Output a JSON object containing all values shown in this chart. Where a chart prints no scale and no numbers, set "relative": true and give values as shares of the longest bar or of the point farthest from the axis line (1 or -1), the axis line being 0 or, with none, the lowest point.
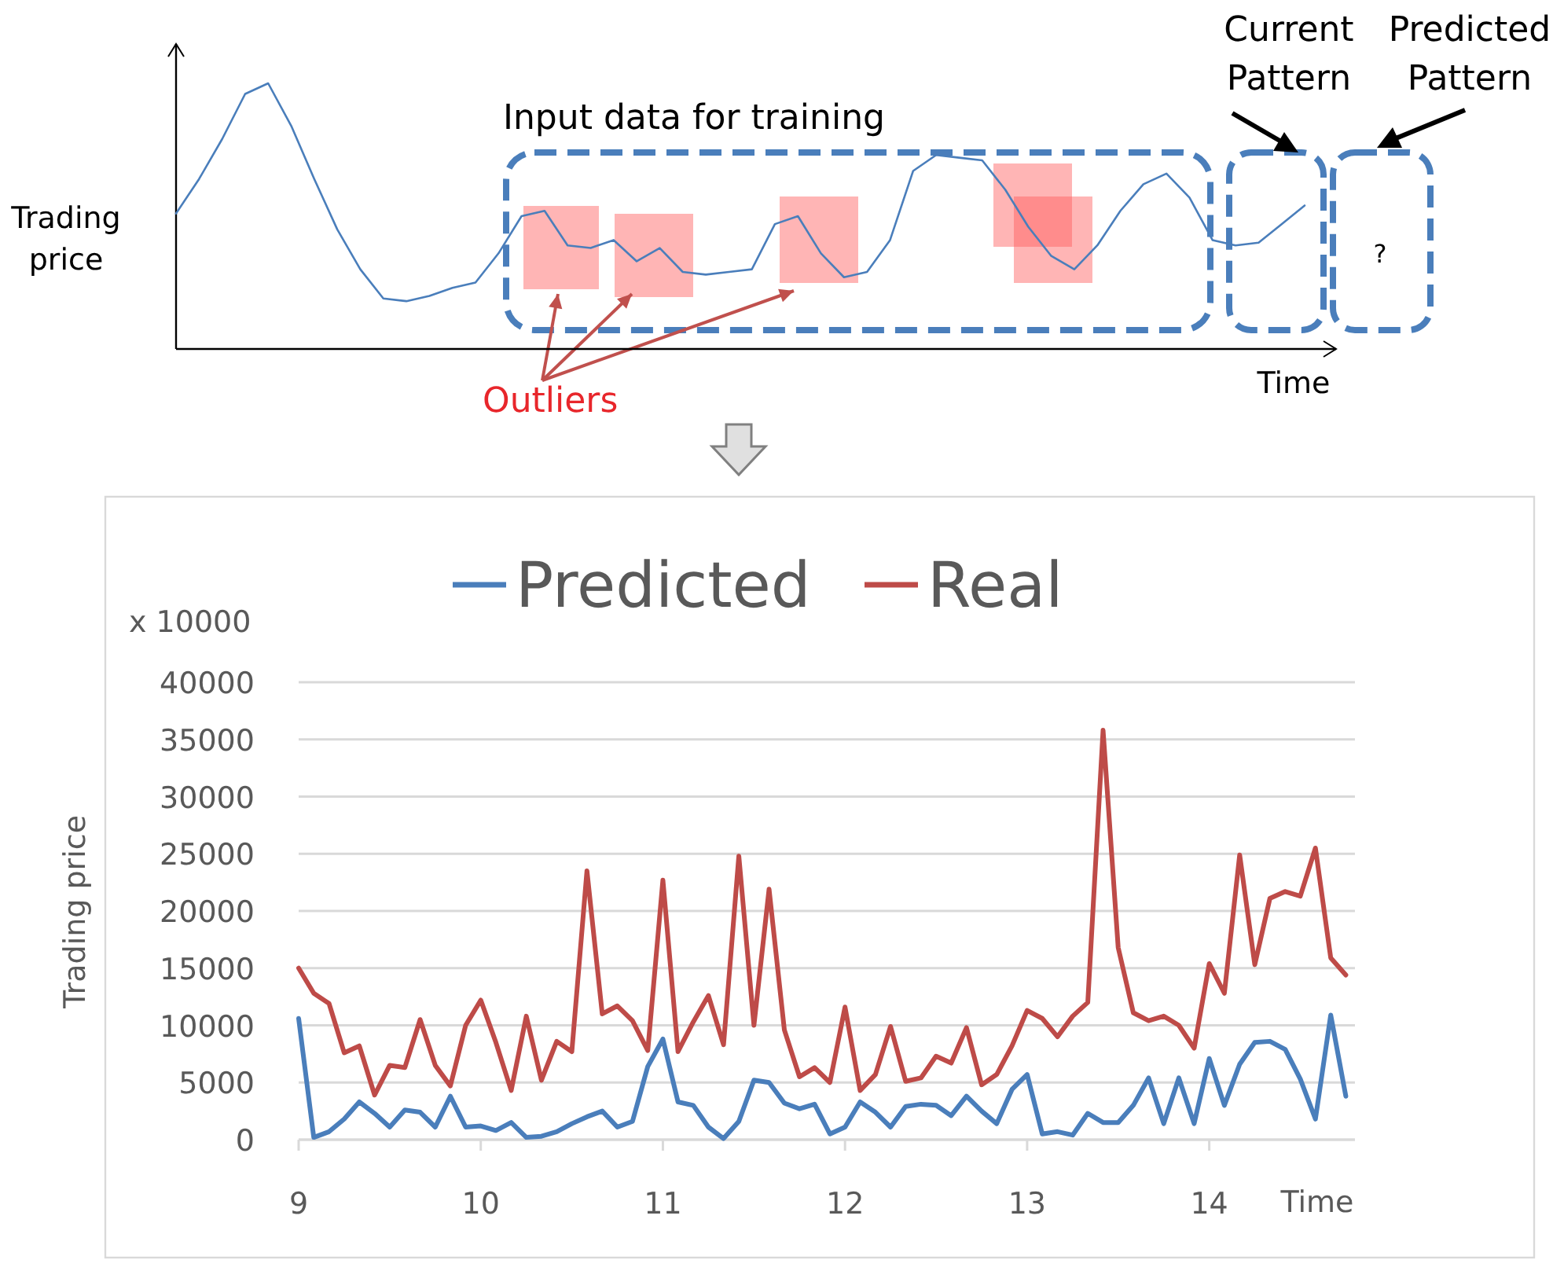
{
  "chart_data": [
    {
      "type": "line",
      "relative": true,
      "xlabel": "Time",
      "ylabel": "Trading price",
      "color": "#4a7ebb",
      "annotations": [
        "Input data for training",
        "Current Pattern",
        "Predicted Pattern",
        "Outliers",
        "?"
      ],
      "categories": [
        null,
        null,
        null,
        null,
        null,
        null,
        null,
        null,
        null,
        null,
        null,
        null,
        null,
        null,
        null,
        null,
        null,
        null,
        null,
        null,
        null,
        null,
        null,
        null,
        null,
        null,
        null,
        null,
        null,
        null,
        null,
        null,
        null,
        null,
        null,
        null,
        null,
        null,
        null,
        null,
        null,
        null,
        null,
        null,
        null,
        null,
        null,
        null,
        null,
        null
      ],
      "values": [
        0.51,
        0.64,
        0.79,
        0.96,
        1,
        0.84,
        0.64,
        0.45,
        0.3,
        0.19,
        0.18,
        0.2,
        0.23,
        0.25,
        0.36,
        0.5,
        0.52,
        0.39,
        0.38,
        0.41,
        0.33,
        0.38,
        0.29,
        0.28,
        0.29,
        0.3,
        0.47,
        0.5,
        0.36,
        0.27,
        0.29,
        0.41,
        0.67,
        0.73,
        0.72,
        0.71,
        0.6,
        0.46,
        0.35,
        0.3,
        0.39,
        0.52,
        0.62,
        0.66,
        0.57,
        0.41,
        0.39,
        0.4,
        0.47,
        0.54
      ]
    },
    {
      "type": "line",
      "xlabel": "Time",
      "ylabel": "Trading price",
      "annotations": [
        "x 10000"
      ],
      "legend": "top",
      "grid": "y",
      "xlim": [
        9,
        14.8
      ],
      "xticks": [
        9,
        10,
        11,
        12,
        13,
        14
      ],
      "ylim": [
        0,
        40000
      ],
      "yticks": [
        0,
        5000,
        10000,
        15000,
        20000,
        25000,
        30000,
        35000,
        40000
      ],
      "x": [
        9,
        9.083,
        9.167,
        9.25,
        9.333,
        9.417,
        9.5,
        9.583,
        9.667,
        9.75,
        9.833,
        9.917,
        10,
        10.083,
        10.167,
        10.25,
        10.333,
        10.417,
        10.5,
        10.583,
        10.667,
        10.75,
        10.833,
        10.917,
        11,
        11.083,
        11.167,
        11.25,
        11.333,
        11.417,
        11.5,
        11.583,
        11.667,
        11.75,
        11.833,
        11.917,
        12,
        12.083,
        12.167,
        12.25,
        12.333,
        12.417,
        12.5,
        12.583,
        12.667,
        12.75,
        12.833,
        12.917,
        13,
        13.083,
        13.167,
        13.25,
        13.333,
        13.417,
        13.5,
        13.583,
        13.667,
        13.75,
        13.833,
        13.917,
        14,
        14.083,
        14.167,
        14.25,
        14.333,
        14.417,
        14.5,
        14.583,
        14.667,
        14.75
      ],
      "series": [
        {
          "name": "Predicted",
          "color": "#4a7ebb",
          "values": [
            10600,
            200,
            700,
            1800,
            3300,
            2300,
            1100,
            2600,
            2400,
            1100,
            3800,
            1100,
            1200,
            800,
            1500,
            200,
            300,
            700,
            1400,
            2000,
            2500,
            1100,
            1600,
            6400,
            8800,
            3300,
            3000,
            1100,
            100,
            1600,
            5200,
            5000,
            3200,
            2700,
            3100,
            500,
            1100,
            3300,
            2400,
            1100,
            2900,
            3100,
            3000,
            2100,
            3800,
            2500,
            1400,
            4400,
            5700,
            500,
            700,
            400,
            2300,
            1500,
            1500,
            3000,
            5400,
            1400,
            5400,
            1400,
            7100,
            3000,
            6600,
            8500,
            8600,
            7900,
            5300,
            1800,
            10900,
            3800
          ]
        },
        {
          "name": "Real",
          "color": "#be4b48",
          "values": [
            15000,
            12800,
            11900,
            7600,
            8200,
            3900,
            6500,
            6300,
            10500,
            6500,
            4700,
            10000,
            12200,
            8500,
            4300,
            10800,
            5200,
            8600,
            7700,
            23500,
            11000,
            11700,
            10400,
            7800,
            22700,
            7700,
            10300,
            12600,
            8300,
            24800,
            10000,
            21900,
            9600,
            5500,
            6300,
            5000,
            11600,
            4300,
            5700,
            9900,
            5100,
            5400,
            7300,
            6700,
            9800,
            4800,
            5700,
            8200,
            11300,
            10600,
            9000,
            10800,
            12000,
            35800,
            16800,
            11100,
            10400,
            10800,
            10000,
            8000,
            15400,
            12800,
            24900,
            15300,
            21100,
            21700,
            21300,
            25500,
            15900,
            14400
          ]
        }
      ]
    }
  ]
}
